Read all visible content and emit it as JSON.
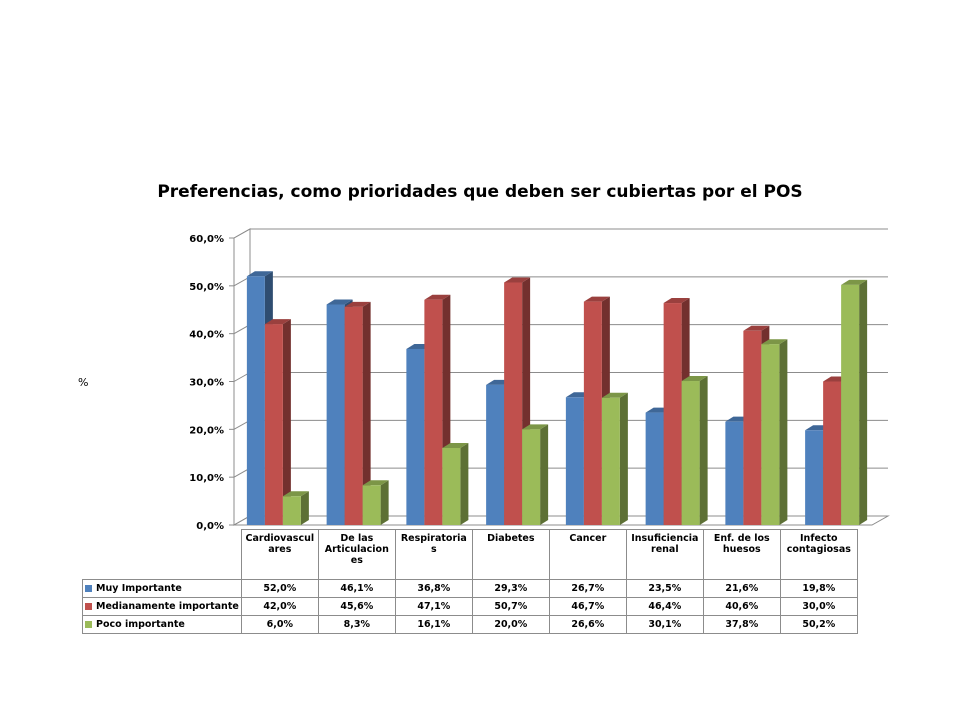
{
  "chart_data": {
    "type": "bar",
    "title": "Preferencias,  como  prioridades que deben ser cubiertas por el POS",
    "ylabel": "%",
    "xlabel": "",
    "ylim": [
      0,
      60
    ],
    "ytick_labels": [
      "0,0%",
      "10,0%",
      "20,0%",
      "30,0%",
      "40,0%",
      "50,0%",
      "60,0%"
    ],
    "yticks": [
      0,
      10,
      20,
      30,
      40,
      50,
      60
    ],
    "grid": true,
    "legend": "data-table-bottom",
    "categories": [
      "Cardiovasculares",
      "De las Articulaciones",
      "Respiratorias",
      "Diabetes",
      "Cancer",
      "Insuficiencia renal",
      "Enf. de los huesos",
      "Infecto contagiosas"
    ],
    "category_labels": [
      [
        "Cardiovascul",
        "ares"
      ],
      [
        "De las",
        "Articulacion",
        "es"
      ],
      [
        "Respiratoria",
        "s"
      ],
      [
        "Diabetes"
      ],
      [
        "Cancer"
      ],
      [
        "Insuficiencia",
        "renal"
      ],
      [
        "Enf. de los",
        "huesos"
      ],
      [
        "Infecto",
        "contagiosas"
      ]
    ],
    "series": [
      {
        "name": "Muy Importante",
        "color": "#4f81bd",
        "values": [
          52.0,
          46.1,
          36.8,
          29.3,
          26.7,
          23.5,
          21.6,
          19.8
        ],
        "labels": [
          "52,0%",
          "46,1%",
          "36,8%",
          "29,3%",
          "26,7%",
          "23,5%",
          "21,6%",
          "19,8%"
        ]
      },
      {
        "name": "Medianamente importante",
        "color": "#c0504d",
        "values": [
          42.0,
          45.6,
          47.1,
          50.7,
          46.7,
          46.4,
          40.6,
          30.0
        ],
        "labels": [
          "42,0%",
          "45,6%",
          "47,1%",
          "50,7%",
          "46,7%",
          "46,4%",
          "40,6%",
          "30,0%"
        ]
      },
      {
        "name": "Poco importante",
        "color": "#9bbb59",
        "values": [
          6.0,
          8.3,
          16.1,
          20.0,
          26.6,
          30.1,
          37.8,
          50.2
        ],
        "labels": [
          "6,0%",
          "8,3%",
          "16,1%",
          "20,0%",
          "26,6%",
          "30,1%",
          "37,8%",
          "50,2%"
        ]
      }
    ]
  }
}
